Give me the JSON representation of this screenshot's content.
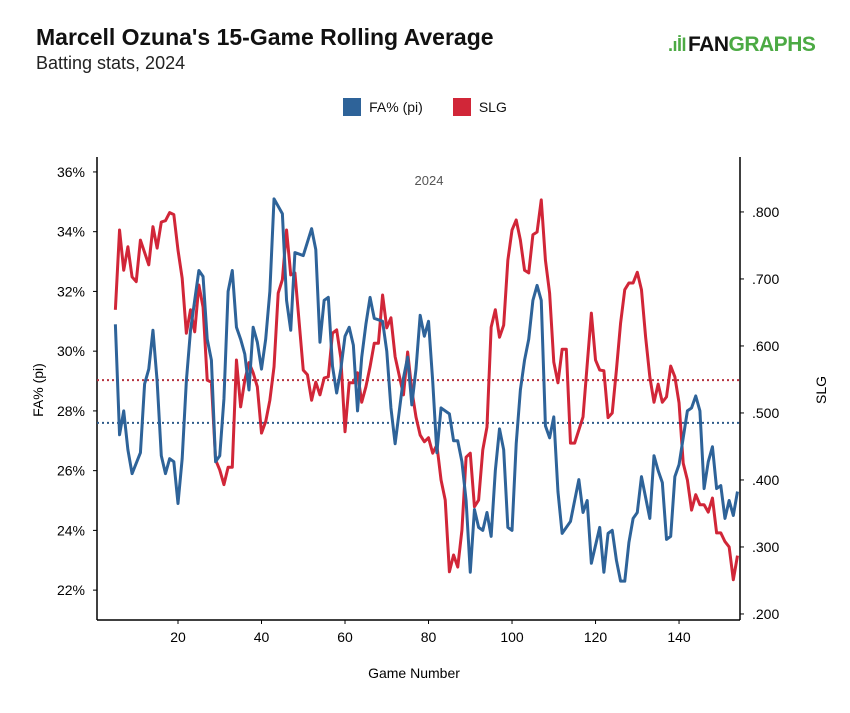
{
  "header": {
    "title": "Marcell Ozuna's 15-Game Rolling Average",
    "subtitle": "Batting stats, 2024",
    "logo": "FANGRAPHS",
    "logo_part1": "FAN",
    "logo_part2": "GRAPHS"
  },
  "colors": {
    "fa": "#2e6399",
    "slg": "#d12638",
    "logo_green": "#4caa44"
  },
  "chart_data": {
    "type": "line",
    "title": "Marcell Ozuna's 15-Game Rolling Average",
    "subtitle": "Batting stats, 2024",
    "annotation": "2024",
    "xlabel": "Game Number",
    "ylabel_left": "FA% (pi)",
    "ylabel_right": "SLG",
    "xlim": [
      0.6,
      154.6
    ],
    "ylim_left": [
      21.0,
      36.5
    ],
    "ylim_right": [
      0.191,
      0.882
    ],
    "x_ticks": [
      20,
      40,
      60,
      80,
      100,
      120,
      140
    ],
    "x_tick_labels": [
      "20",
      "40",
      "60",
      "80",
      "100",
      "120",
      "140"
    ],
    "y_left_ticks": [
      22,
      24,
      26,
      28,
      30,
      32,
      34,
      36
    ],
    "y_left_tick_labels": [
      "22%",
      "24%",
      "26%",
      "28%",
      "30%",
      "32%",
      "34%",
      "36%"
    ],
    "y_right_ticks": [
      0.2,
      0.3,
      0.4,
      0.5,
      0.6,
      0.7,
      0.8
    ],
    "y_right_tick_labels": [
      ".200",
      ".300",
      ".400",
      ".500",
      ".600",
      ".700",
      ".800"
    ],
    "legend": [
      "FA% (pi)",
      "SLG"
    ],
    "legend_position": "top-center",
    "grid": false,
    "series": [
      {
        "name": "FA% (pi)",
        "axis": "left",
        "mean": 27.6,
        "x": [
          5,
          6,
          7,
          8,
          9,
          11,
          12,
          13,
          14,
          15,
          16,
          17,
          18,
          19,
          20,
          21,
          22,
          23,
          24,
          25,
          26,
          27,
          28,
          29,
          30,
          31,
          32,
          33,
          34,
          35,
          36,
          37,
          38,
          39,
          40,
          41,
          42,
          43,
          45,
          46,
          47,
          48,
          50,
          52,
          53,
          54,
          55,
          56,
          57,
          58,
          59,
          60,
          61,
          62,
          63,
          64,
          65,
          66,
          67,
          69,
          70,
          71,
          72,
          73,
          74,
          75,
          76,
          77,
          78,
          79,
          80,
          81,
          82,
          83,
          85,
          86,
          87,
          88,
          89,
          90,
          91,
          92,
          93,
          94,
          95,
          96,
          97,
          98,
          99,
          100,
          101,
          102,
          103,
          104,
          105,
          106,
          107,
          108,
          109,
          110,
          111,
          112,
          114,
          116,
          117,
          118,
          119,
          121,
          122,
          123,
          124,
          125,
          126,
          127,
          128,
          129,
          130,
          131,
          132,
          133,
          134,
          135,
          136,
          137,
          138,
          139,
          140,
          141,
          142,
          143,
          144,
          145,
          146,
          147,
          148,
          149,
          150,
          151,
          152,
          153,
          154
        ],
        "y": [
          30.9,
          27.2,
          28.0,
          26.7,
          25.9,
          26.6,
          28.9,
          29.4,
          30.7,
          29.0,
          26.5,
          25.9,
          26.4,
          26.3,
          24.9,
          26.4,
          29.0,
          30.7,
          31.7,
          32.7,
          32.5,
          30.4,
          29.7,
          26.3,
          26.5,
          28.4,
          32.0,
          32.7,
          30.8,
          30.4,
          29.9,
          28.7,
          30.8,
          30.3,
          29.4,
          30.4,
          32.0,
          35.1,
          34.6,
          31.7,
          30.7,
          33.3,
          33.2,
          34.1,
          33.4,
          30.3,
          31.7,
          31.8,
          29.5,
          28.6,
          29.4,
          30.5,
          30.8,
          30.2,
          28.0,
          29.8,
          30.9,
          31.8,
          31.1,
          31.0,
          30.0,
          28.1,
          26.9,
          28.0,
          29.1,
          29.8,
          28.2,
          29.4,
          31.2,
          30.5,
          31.0,
          29.0,
          26.6,
          28.1,
          27.9,
          27.0,
          27.0,
          26.3,
          25.0,
          22.6,
          24.7,
          24.1,
          24.0,
          24.6,
          23.8,
          26.0,
          27.4,
          26.7,
          24.1,
          24.0,
          26.9,
          28.7,
          29.7,
          30.4,
          31.7,
          32.2,
          31.7,
          27.5,
          27.1,
          27.8,
          25.3,
          23.9,
          24.3,
          25.7,
          24.6,
          25.0,
          22.9,
          24.1,
          22.6,
          23.9,
          24.0,
          23.0,
          22.3,
          22.3,
          23.6,
          24.4,
          24.6,
          25.8,
          25.1,
          24.4,
          26.5,
          26.0,
          25.6,
          23.7,
          23.8,
          25.8,
          26.2,
          27.1,
          28.0,
          28.1,
          28.5,
          28.0,
          25.4,
          26.3,
          26.8,
          25.4,
          25.5,
          24.4,
          25.0,
          24.5,
          25.3
        ]
      },
      {
        "name": "SLG",
        "axis": "right",
        "mean": 0.549,
        "x": [
          5,
          6,
          7,
          8,
          9,
          10,
          11,
          13,
          14,
          15,
          16,
          17,
          18,
          19,
          20,
          21,
          22,
          23,
          24,
          25,
          26,
          27,
          28,
          29,
          30,
          31,
          32,
          33,
          34,
          35,
          36,
          37,
          38,
          39,
          40,
          41,
          42,
          43,
          44,
          45,
          46,
          47,
          48,
          50,
          51,
          52,
          53,
          54,
          55,
          56,
          57,
          58,
          59,
          60,
          61,
          62,
          63,
          64,
          65,
          66,
          67,
          68,
          69,
          70,
          71,
          72,
          74,
          75,
          76,
          77,
          78,
          79,
          80,
          81,
          82,
          83,
          84,
          85,
          86,
          87,
          88,
          89,
          90,
          91,
          92,
          93,
          94,
          95,
          96,
          97,
          98,
          99,
          100,
          101,
          102,
          103,
          104,
          105,
          106,
          107,
          108,
          109,
          110,
          111,
          112,
          113,
          114,
          115,
          117,
          118,
          119,
          120,
          121,
          122,
          123,
          124,
          125,
          126,
          127,
          128,
          129,
          130,
          131,
          132,
          133,
          134,
          135,
          136,
          137,
          138,
          139,
          140,
          141,
          142,
          143,
          144,
          145,
          146,
          147,
          148,
          149,
          150,
          151,
          152,
          153,
          154
        ],
        "y": [
          0.654,
          0.773,
          0.713,
          0.748,
          0.703,
          0.696,
          0.758,
          0.721,
          0.778,
          0.746,
          0.785,
          0.787,
          0.799,
          0.796,
          0.743,
          0.701,
          0.619,
          0.654,
          0.621,
          0.691,
          0.658,
          0.549,
          0.546,
          0.43,
          0.415,
          0.393,
          0.419,
          0.419,
          0.579,
          0.509,
          0.549,
          0.575,
          0.56,
          0.539,
          0.47,
          0.487,
          0.519,
          0.569,
          0.679,
          0.699,
          0.773,
          0.706,
          0.709,
          0.564,
          0.557,
          0.519,
          0.546,
          0.527,
          0.552,
          0.554,
          0.619,
          0.624,
          0.582,
          0.472,
          0.545,
          0.545,
          0.56,
          0.516,
          0.539,
          0.569,
          0.604,
          0.604,
          0.676,
          0.627,
          0.642,
          0.584,
          0.527,
          0.591,
          0.534,
          0.494,
          0.467,
          0.457,
          0.463,
          0.44,
          0.452,
          0.4,
          0.37,
          0.263,
          0.288,
          0.27,
          0.325,
          0.434,
          0.44,
          0.36,
          0.37,
          0.445,
          0.479,
          0.628,
          0.654,
          0.613,
          0.631,
          0.728,
          0.773,
          0.788,
          0.758,
          0.713,
          0.709,
          0.766,
          0.77,
          0.818,
          0.728,
          0.679,
          0.576,
          0.545,
          0.595,
          0.595,
          0.455,
          0.455,
          0.494,
          0.572,
          0.649,
          0.579,
          0.564,
          0.563,
          0.493,
          0.5,
          0.564,
          0.634,
          0.684,
          0.694,
          0.694,
          0.71,
          0.684,
          0.613,
          0.554,
          0.516,
          0.543,
          0.516,
          0.524,
          0.57,
          0.554,
          0.515,
          0.425,
          0.4,
          0.355,
          0.378,
          0.363,
          0.363,
          0.352,
          0.373,
          0.321,
          0.321,
          0.308,
          0.3,
          0.251,
          0.287
        ]
      }
    ]
  }
}
